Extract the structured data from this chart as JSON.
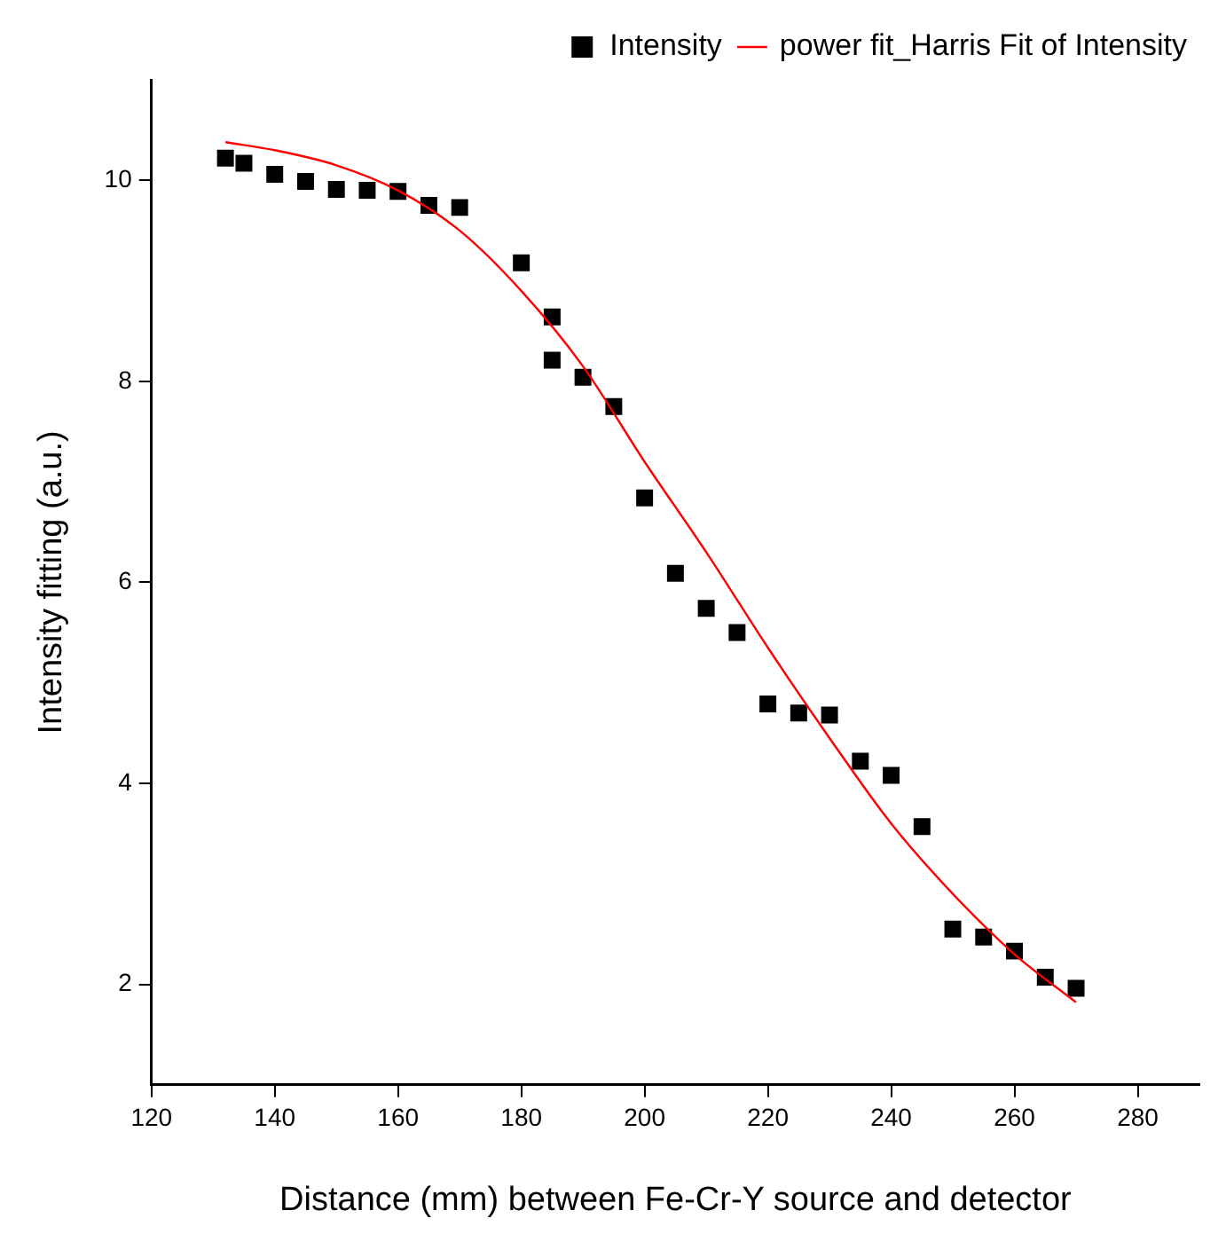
{
  "chart_data": {
    "type": "scatter",
    "xlabel": "Distance (mm) between Fe-Cr-Y source and detector",
    "ylabel": "Intensity fitting (a.u.)",
    "xlim": [
      120,
      290
    ],
    "xticks": [
      120,
      140,
      160,
      180,
      200,
      220,
      240,
      260,
      280
    ],
    "ylim": [
      1,
      11
    ],
    "yticks": [
      2,
      4,
      6,
      8,
      10
    ],
    "grid": false,
    "legend": "top right",
    "series": [
      {
        "name": "Intensity",
        "color": "#000000",
        "marker": "square",
        "x": [
          132,
          135,
          140,
          145,
          150,
          155,
          160,
          165,
          170,
          180,
          185,
          185,
          190,
          195,
          200,
          205,
          210,
          215,
          220,
          225,
          230,
          235,
          240,
          245,
          250,
          255,
          260,
          265,
          270
        ],
        "values": [
          10.22,
          10.17,
          10.06,
          9.99,
          9.91,
          9.9,
          9.89,
          9.75,
          9.73,
          9.18,
          8.64,
          8.21,
          8.04,
          7.75,
          6.84,
          6.09,
          5.74,
          5.5,
          4.79,
          4.7,
          4.68,
          4.22,
          4.08,
          3.57,
          2.55,
          2.47,
          2.33,
          2.07,
          1.96
        ]
      },
      {
        "name": "power fit_Harris Fit of Intensity",
        "color": "#ff0000",
        "type": "line",
        "marker": "none",
        "x": [
          132,
          140,
          150,
          160,
          170,
          180,
          190,
          200,
          210,
          220,
          230,
          240,
          250,
          260,
          270
        ],
        "values": [
          10.38,
          10.3,
          10.15,
          9.9,
          9.5,
          8.9,
          8.15,
          7.2,
          6.3,
          5.35,
          4.45,
          3.6,
          2.9,
          2.3,
          1.82
        ]
      }
    ]
  }
}
